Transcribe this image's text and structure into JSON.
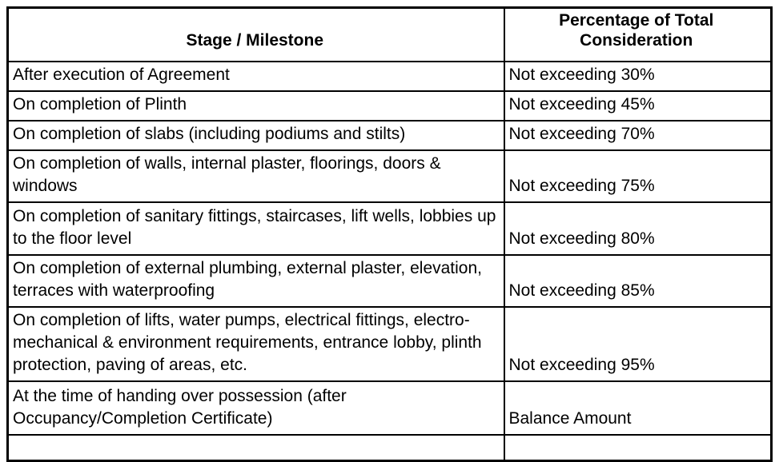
{
  "table": {
    "columns": [
      {
        "label": "Stage / Milestone"
      },
      {
        "label": "Percentage of Total Consideration"
      }
    ],
    "rows": [
      {
        "stage": "After execution of Agreement",
        "percentage": "Not exceeding 30%"
      },
      {
        "stage": "On completion of Plinth",
        "percentage": "Not exceeding 45%"
      },
      {
        "stage": "On completion of slabs (including podiums and stilts)",
        "percentage": "Not exceeding 70%"
      },
      {
        "stage": "On completion of walls, internal plaster, floorings, doors & windows",
        "percentage": "Not exceeding 75%"
      },
      {
        "stage": "On completion of sanitary fittings, staircases, lift wells, lobbies up to the floor level",
        "percentage": "Not exceeding 80%"
      },
      {
        "stage": "On completion of external plumbing, external plaster, elevation, terraces with waterproofing",
        "percentage": "Not exceeding 85%"
      },
      {
        "stage": "On completion of lifts, water pumps, electrical fittings, electro-mechanical & environment requirements, entrance lobby, plinth protection, paving of areas, etc.",
        "percentage": "Not exceeding 95%"
      },
      {
        "stage": "At the time of handing over possession (after Occupancy/Completion Certificate)",
        "percentage": "Balance Amount"
      },
      {
        "stage": "",
        "percentage": ""
      }
    ],
    "colors": {
      "border": "#000000",
      "text": "#000000",
      "background": "#ffffff"
    }
  }
}
